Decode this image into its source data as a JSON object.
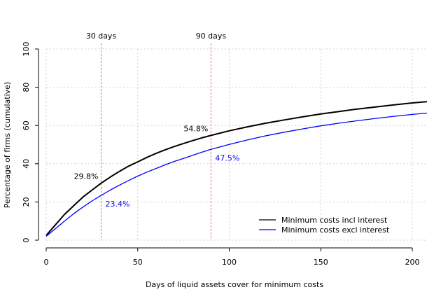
{
  "chart_data": {
    "type": "line",
    "title": "",
    "xlabel": "Days of liquid assets cover for minimum costs",
    "ylabel": "Percentage of firms (cumulative)",
    "xlim": [
      0,
      208
    ],
    "ylim": [
      0,
      100
    ],
    "x_ticks": [
      0,
      50,
      100,
      150,
      200
    ],
    "y_ticks": [
      0,
      20,
      40,
      60,
      80,
      100
    ],
    "grid": true,
    "legend_position": "bottom-right",
    "series": [
      {
        "name": "Minimum costs incl interest",
        "color": "#000000",
        "x": [
          0,
          5,
          10,
          15,
          20,
          25,
          30,
          35,
          40,
          45,
          50,
          55,
          60,
          65,
          70,
          75,
          80,
          85,
          90,
          100,
          110,
          120,
          130,
          140,
          150,
          160,
          170,
          180,
          190,
          200,
          208
        ],
        "y": [
          2.5,
          8,
          13.5,
          18,
          22.5,
          26.2,
          29.8,
          33,
          36,
          38.7,
          41,
          43.3,
          45.4,
          47.3,
          49,
          50.6,
          52.1,
          53.5,
          54.8,
          57.2,
          59.3,
          61.2,
          62.9,
          64.5,
          66,
          67.3,
          68.6,
          69.7,
          70.8,
          71.8,
          72.5
        ]
      },
      {
        "name": "Minimum costs excl interest",
        "color": "#0000ff",
        "x": [
          0,
          5,
          10,
          15,
          20,
          25,
          30,
          35,
          40,
          45,
          50,
          55,
          60,
          65,
          70,
          75,
          80,
          85,
          90,
          100,
          110,
          120,
          130,
          140,
          150,
          160,
          170,
          180,
          190,
          200,
          208
        ],
        "y": [
          2,
          6,
          10,
          13.8,
          17.3,
          20.5,
          23.4,
          26.2,
          28.8,
          31.2,
          33.5,
          35.6,
          37.5,
          39.4,
          41.2,
          42.8,
          44.4,
          46,
          47.5,
          50.1,
          52.5,
          54.6,
          56.5,
          58.2,
          59.8,
          61.2,
          62.5,
          63.7,
          64.8,
          65.8,
          66.5
        ]
      }
    ],
    "vlines": [
      {
        "x": 30,
        "label": "30 days",
        "color": "#ff6b6b"
      },
      {
        "x": 90,
        "label": "90 days",
        "color": "#ff6b6b"
      }
    ],
    "annotations": [
      {
        "text": "29.8%",
        "x": 30,
        "y": 29.8,
        "color": "#000000",
        "side": "left"
      },
      {
        "text": "23.4%",
        "x": 30,
        "y": 23.4,
        "color": "#0000ff",
        "side": "right"
      },
      {
        "text": "54.8%",
        "x": 90,
        "y": 54.8,
        "color": "#000000",
        "side": "left"
      },
      {
        "text": "47.5%",
        "x": 90,
        "y": 47.5,
        "color": "#0000ff",
        "side": "right"
      }
    ]
  }
}
